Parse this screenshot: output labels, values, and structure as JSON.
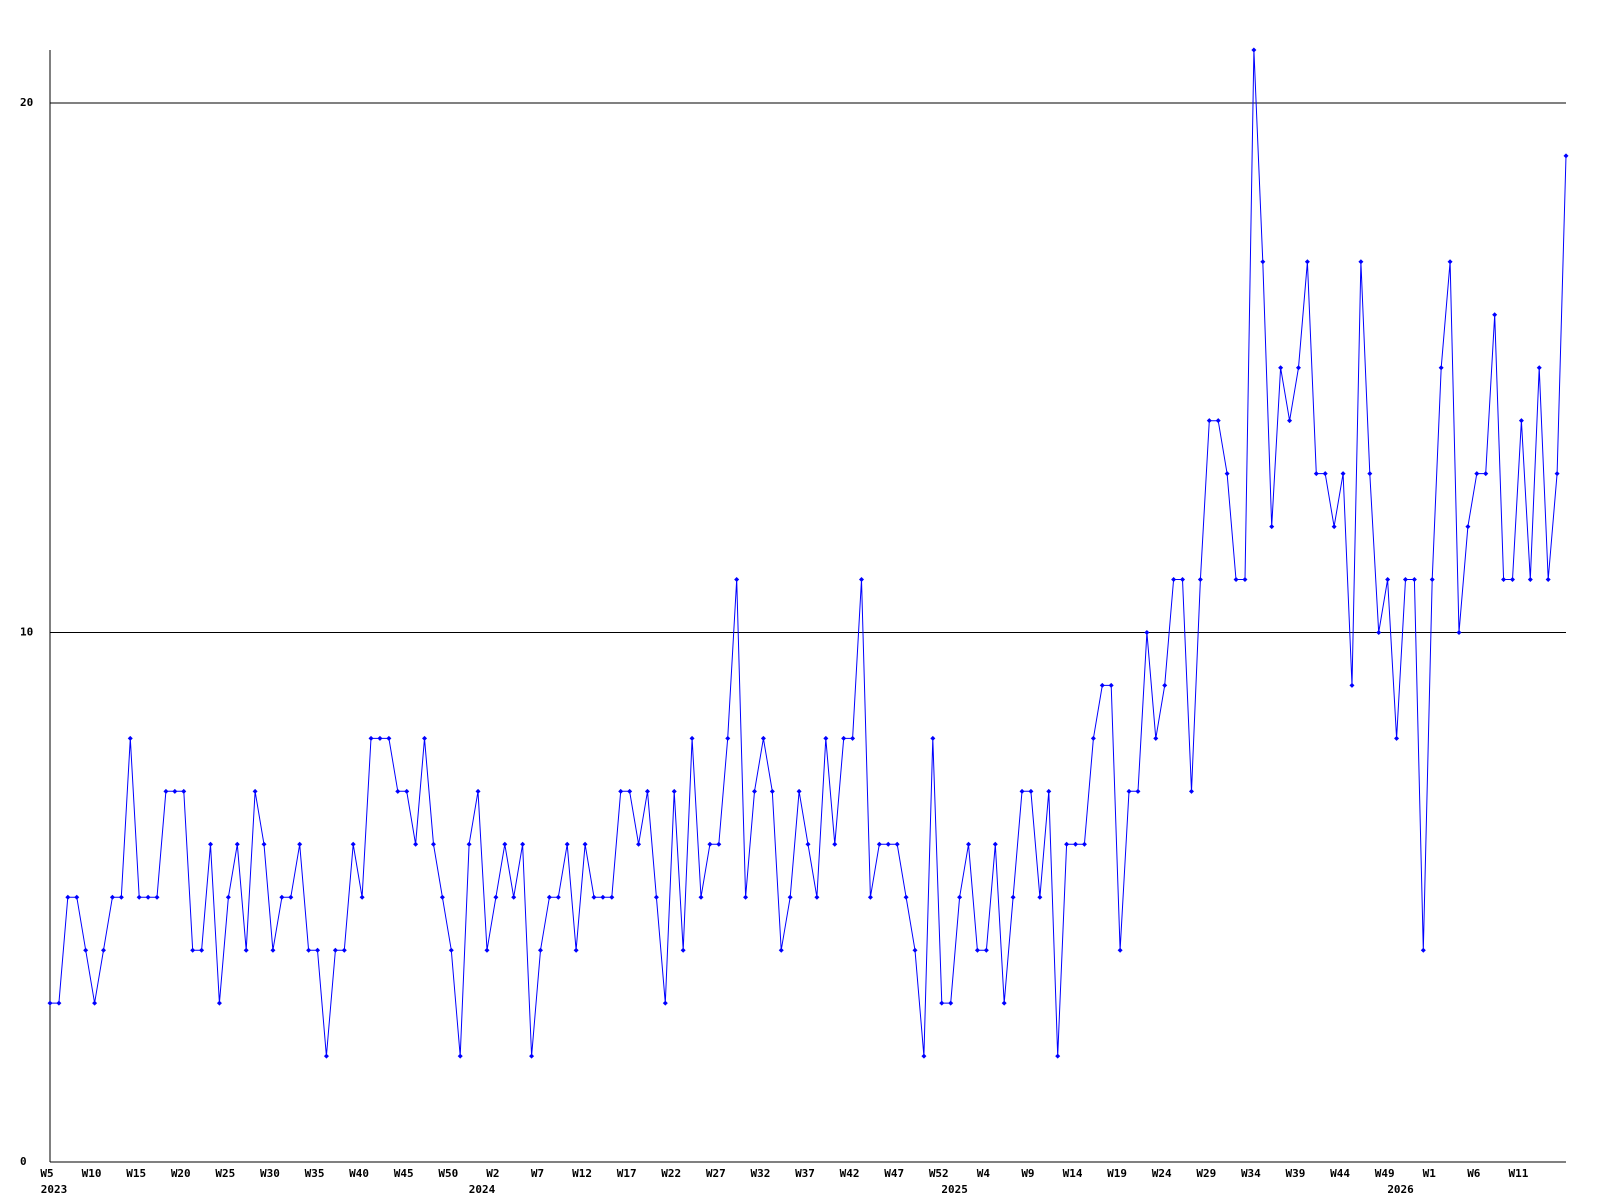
{
  "chart_data": {
    "type": "line",
    "categories": [
      "W5",
      null,
      null,
      null,
      null,
      "W10",
      null,
      null,
      null,
      null,
      "W15",
      null,
      null,
      null,
      null,
      "W20",
      null,
      null,
      null,
      null,
      "W25",
      null,
      null,
      null,
      null,
      "W30",
      null,
      null,
      null,
      null,
      "W35",
      null,
      null,
      null,
      null,
      "W40",
      null,
      null,
      null,
      null,
      "W45",
      null,
      null,
      null,
      null,
      "W50",
      null,
      null,
      null,
      null,
      "W2",
      null,
      null,
      null,
      null,
      "W7",
      null,
      null,
      null,
      null,
      "W12",
      null,
      null,
      null,
      null,
      "W17",
      null,
      null,
      null,
      null,
      "W22",
      null,
      null,
      null,
      null,
      "W27",
      null,
      null,
      null,
      null,
      "W32",
      null,
      null,
      null,
      null,
      "W37",
      null,
      null,
      null,
      null,
      "W42",
      null,
      null,
      null,
      null,
      "W47",
      null,
      null,
      null,
      null,
      "W52",
      null,
      null,
      null,
      null,
      "W4",
      null,
      null,
      null,
      null,
      "W9",
      null,
      null,
      null,
      null,
      "W14",
      null,
      null,
      null,
      null,
      "W19",
      null,
      null,
      null,
      null,
      "W24",
      null,
      null,
      null,
      null,
      "W29",
      null,
      null,
      null,
      null,
      "W34",
      null,
      null,
      null,
      null,
      "W39",
      null,
      null,
      null,
      null,
      "W44",
      null,
      null,
      null,
      null,
      "W49",
      null,
      null,
      null,
      null,
      "W1",
      null,
      null,
      null,
      null,
      "W6",
      null,
      null,
      null,
      null,
      "W11",
      null,
      null,
      null,
      null,
      null
    ],
    "years": [
      "2023",
      null,
      null,
      null,
      null,
      null,
      null,
      null,
      null,
      null,
      null,
      null,
      null,
      null,
      null,
      null,
      null,
      null,
      null,
      null,
      null,
      null,
      null,
      null,
      null,
      null,
      null,
      null,
      null,
      null,
      null,
      null,
      null,
      null,
      null,
      null,
      null,
      null,
      null,
      null,
      null,
      null,
      null,
      null,
      null,
      null,
      null,
      null,
      "2024",
      null,
      null,
      null,
      null,
      null,
      null,
      null,
      null,
      null,
      null,
      null,
      null,
      null,
      null,
      null,
      null,
      null,
      null,
      null,
      null,
      null,
      null,
      null,
      null,
      null,
      null,
      null,
      null,
      null,
      null,
      null,
      null,
      null,
      null,
      null,
      null,
      null,
      null,
      null,
      null,
      null,
      null,
      null,
      null,
      null,
      null,
      null,
      null,
      null,
      null,
      null,
      null,
      "2025",
      null,
      null,
      null,
      null,
      null,
      null,
      null,
      null,
      null,
      null,
      null,
      null,
      null,
      null,
      null,
      null,
      null,
      null,
      null,
      null,
      null,
      null,
      null,
      null,
      null,
      null,
      null,
      null,
      null,
      null,
      null,
      null,
      null,
      null,
      null,
      null,
      null,
      null,
      null,
      null,
      null,
      null,
      null,
      null,
      null,
      null,
      null,
      null,
      null,
      "2026",
      null,
      null,
      null,
      null,
      null,
      null,
      null,
      null,
      null,
      null,
      null,
      null,
      null,
      null,
      null,
      null
    ],
    "series": [
      {
        "color": "#0000ff",
        "values": [
          3,
          3,
          5,
          5,
          4,
          3,
          4,
          5,
          5,
          8,
          5,
          5,
          5,
          7,
          7,
          7,
          4,
          4,
          6,
          3,
          5,
          6,
          4,
          7,
          6,
          4,
          5,
          5,
          6,
          4,
          4,
          2,
          4,
          4,
          6,
          5,
          8,
          8,
          8,
          7,
          7,
          6,
          8,
          6,
          5,
          4,
          2,
          6,
          7,
          4,
          5,
          6,
          5,
          6,
          2,
          4,
          5,
          5,
          6,
          4,
          6,
          5,
          5,
          5,
          7,
          7,
          6,
          7,
          5,
          3,
          7,
          4,
          8,
          5,
          6,
          6,
          8,
          11,
          5,
          7,
          8,
          7,
          4,
          5,
          7,
          6,
          5,
          8,
          6,
          8,
          8,
          11,
          5,
          6,
          6,
          6,
          5,
          4,
          2,
          8,
          3,
          3,
          5,
          6,
          4,
          4,
          6,
          3,
          5,
          7,
          7,
          5,
          7,
          2,
          6,
          6,
          6,
          8,
          9,
          9,
          4,
          7,
          7,
          10,
          8,
          9,
          11,
          11,
          7,
          11,
          14,
          14,
          13,
          11,
          11,
          21,
          17,
          12,
          15,
          14,
          15,
          17,
          13,
          13,
          12,
          13,
          9,
          17,
          13,
          10,
          11,
          8,
          11,
          11,
          4,
          11,
          15,
          17,
          10,
          12,
          13,
          13,
          16,
          11,
          11,
          14,
          11,
          15,
          11,
          13,
          19
        ]
      }
    ],
    "ylim": [
      0,
      21
    ],
    "yticks": [
      0,
      10,
      20
    ],
    "grid": true
  }
}
